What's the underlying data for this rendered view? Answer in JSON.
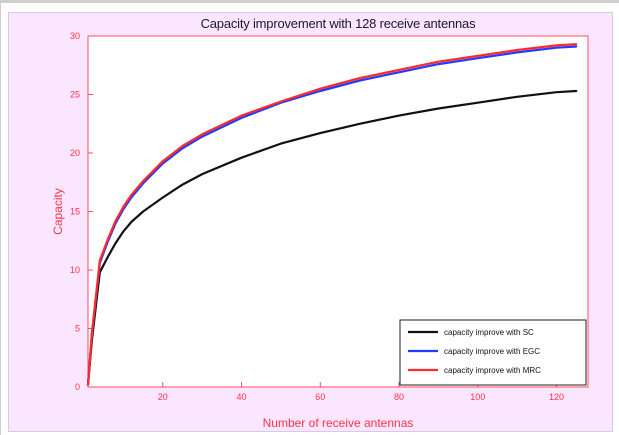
{
  "chart_data": {
    "type": "line",
    "title": "Capacity improvement with 128 receive antennas",
    "xlabel": "Number of receive antennas",
    "ylabel": "Capacity",
    "xlim": [
      1,
      128
    ],
    "ylim": [
      0,
      30
    ],
    "xticks": [
      20,
      40,
      60,
      80,
      100,
      120
    ],
    "yticks": [
      0,
      5,
      10,
      15,
      20,
      25,
      30
    ],
    "grid": true,
    "legend_position": "bottom-right",
    "series": [
      {
        "name": "capacity improve with SC",
        "color": "#111111",
        "x": [
          1,
          2,
          4,
          6,
          8,
          10,
          12,
          15,
          20,
          25,
          30,
          40,
          50,
          60,
          70,
          80,
          90,
          100,
          110,
          120,
          125
        ],
        "y": [
          0.2,
          4.0,
          9.8,
          11.1,
          12.3,
          13.3,
          14.1,
          15.0,
          16.2,
          17.3,
          18.2,
          19.6,
          20.8,
          21.7,
          22.5,
          23.2,
          23.8,
          24.3,
          24.8,
          25.2,
          25.3
        ]
      },
      {
        "name": "capacity improve with EGC",
        "color": "#1f3cff",
        "x": [
          1,
          2,
          4,
          6,
          8,
          10,
          12,
          15,
          20,
          25,
          30,
          40,
          50,
          60,
          70,
          80,
          90,
          100,
          110,
          120,
          125
        ],
        "y": [
          0.2,
          4.5,
          10.6,
          12.4,
          14.0,
          15.2,
          16.2,
          17.4,
          19.1,
          20.4,
          21.4,
          23.0,
          24.3,
          25.3,
          26.2,
          26.9,
          27.6,
          28.1,
          28.6,
          29.0,
          29.1
        ]
      },
      {
        "name": "capacity improve with MRC",
        "color": "#ff2a2a",
        "x": [
          1,
          2,
          4,
          6,
          8,
          10,
          12,
          15,
          20,
          25,
          30,
          40,
          50,
          60,
          70,
          80,
          90,
          100,
          110,
          120,
          125
        ],
        "y": [
          0.2,
          4.6,
          10.8,
          12.6,
          14.2,
          15.4,
          16.4,
          17.6,
          19.3,
          20.6,
          21.6,
          23.2,
          24.4,
          25.5,
          26.4,
          27.1,
          27.8,
          28.3,
          28.8,
          29.2,
          29.3
        ]
      }
    ]
  }
}
